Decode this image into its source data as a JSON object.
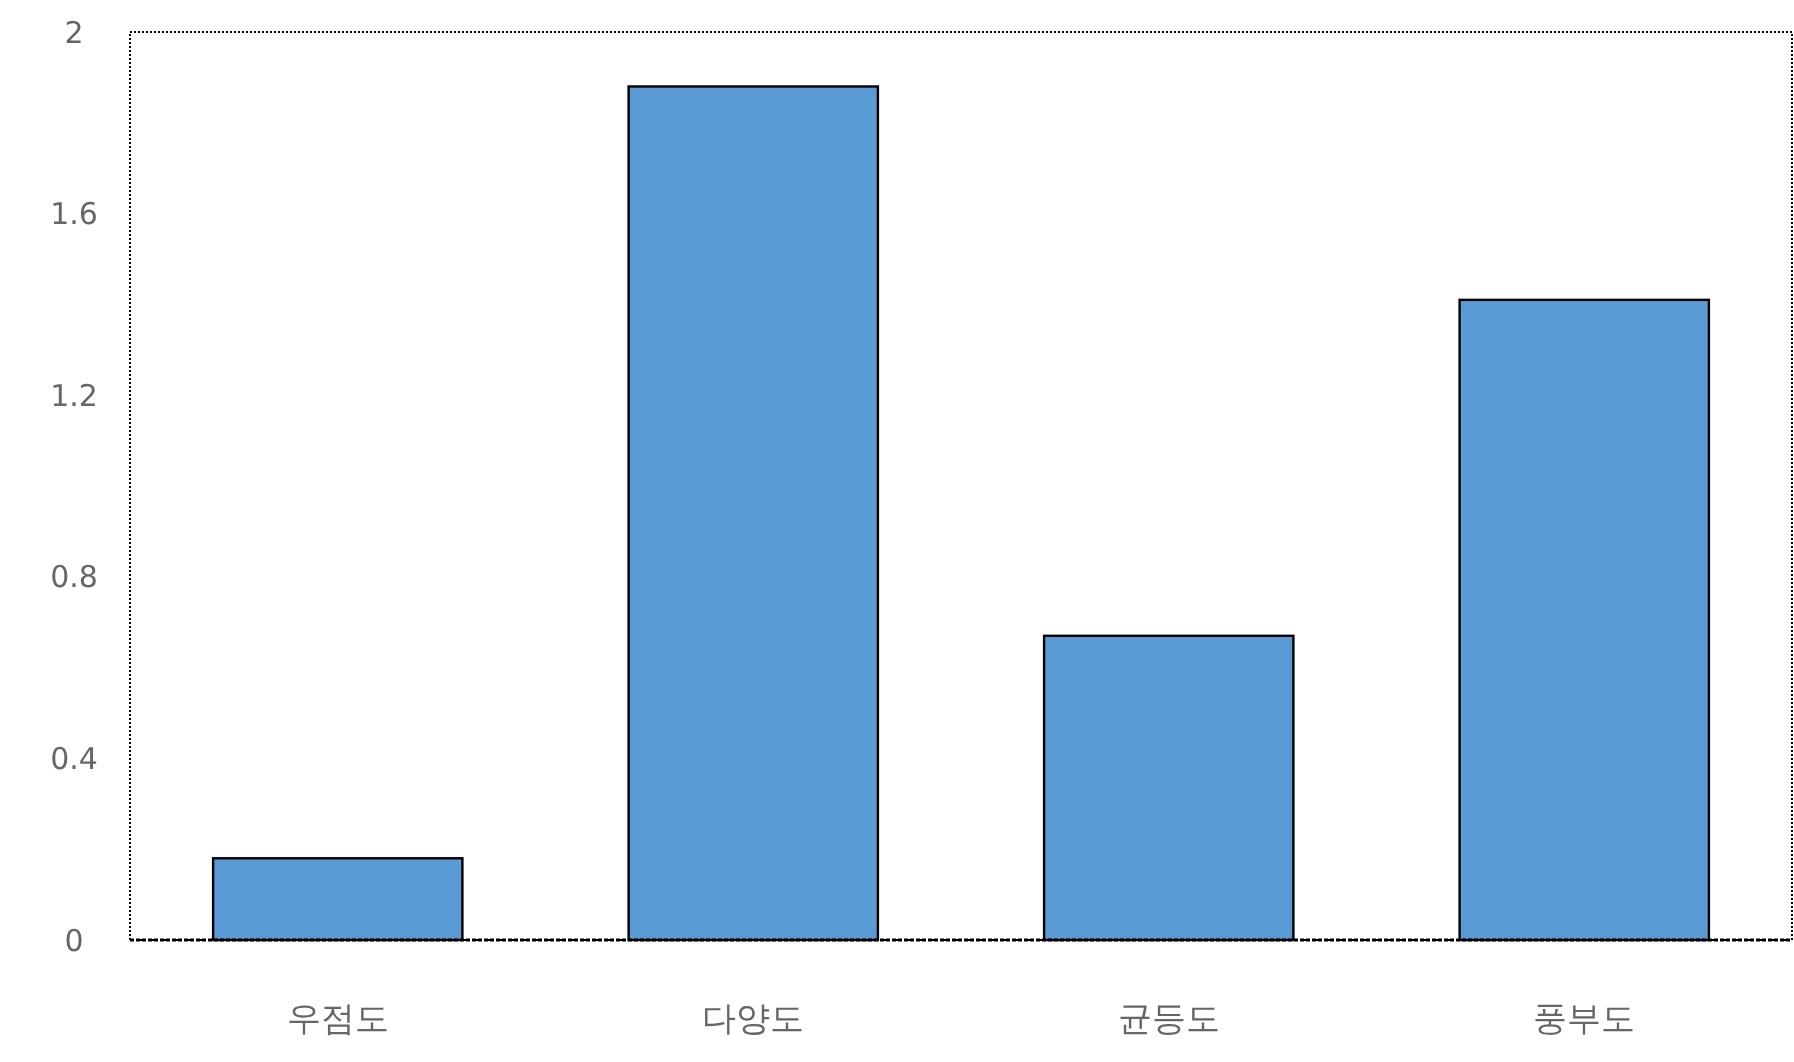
{
  "chart_data": {
    "type": "bar",
    "categories": [
      "우점도",
      "다양도",
      "균등도",
      "풍부도"
    ],
    "values": [
      0.18,
      1.88,
      0.67,
      1.41
    ],
    "color": "#5b9bd5",
    "ylim": [
      0,
      2
    ],
    "yticks": [
      0,
      0.4,
      0.8,
      1.2,
      1.6,
      2
    ],
    "grid": false
  }
}
